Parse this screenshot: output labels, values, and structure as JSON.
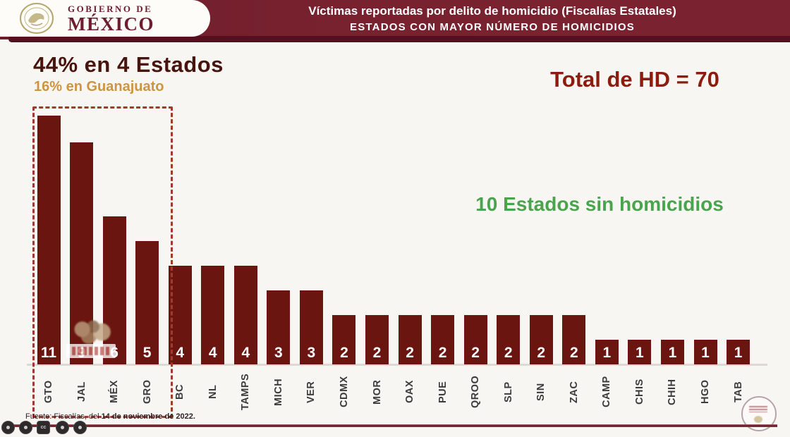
{
  "header": {
    "brand": {
      "line1": "GOBIERNO DE",
      "line2": "MÉXICO",
      "seal_icon": "eagle-seal-icon"
    },
    "title_line1": "Víctimas reportadas por delito de homicidio (Fiscalías Estatales)",
    "title_line2": "ESTADOS CON MAYOR NÚMERO DE HOMICIDIOS"
  },
  "annotations": {
    "headline": "44% en 4 Estados",
    "subheadline": "16% en Guanajuato",
    "total_label": "Total de HD = 70",
    "zero_states_label": "10 Estados sin homicidios"
  },
  "chart_data": {
    "type": "bar",
    "title": "Estados con mayor número de homicidios",
    "categories": [
      "GTO",
      "JAL",
      "MÉX",
      "GRO",
      "BC",
      "NL",
      "TAMPS",
      "MICH",
      "VER",
      "CDMX",
      "MOR",
      "OAX",
      "PUE",
      "QROO",
      "SLP",
      "SIN",
      "ZAC",
      "CAMP",
      "CHIS",
      "CHIH",
      "HGO",
      "TAB"
    ],
    "values": [
      11,
      9,
      6,
      5,
      4,
      4,
      4,
      3,
      3,
      2,
      2,
      2,
      2,
      2,
      2,
      2,
      2,
      1,
      1,
      1,
      1,
      1
    ],
    "total": 70,
    "ylim": [
      0,
      11
    ],
    "grid": false,
    "legend": "none",
    "bar_color": "#6b1510",
    "value_label_color": "#ffffff",
    "highlighted_states": [
      "GTO",
      "JAL",
      "MÉX",
      "GRO"
    ],
    "highlight_note": "44% en 4 Estados"
  },
  "footer": {
    "source_prefix": "Fuente: Fiscalías, del ",
    "source_bold": "14 de noviembre de 2022."
  },
  "colors": {
    "header_band": "#77212f",
    "bar": "#6b1510",
    "headline": "#48140d",
    "subheadline": "#ce9440",
    "total": "#8c1c10",
    "zero_states": "#4aa34d",
    "highlight_border": "#a03a2a"
  },
  "player_controls": {
    "icons": [
      "player-control-icon",
      "player-control-icon",
      "captions-badge-icon",
      "player-control-icon",
      "player-control-icon"
    ]
  }
}
